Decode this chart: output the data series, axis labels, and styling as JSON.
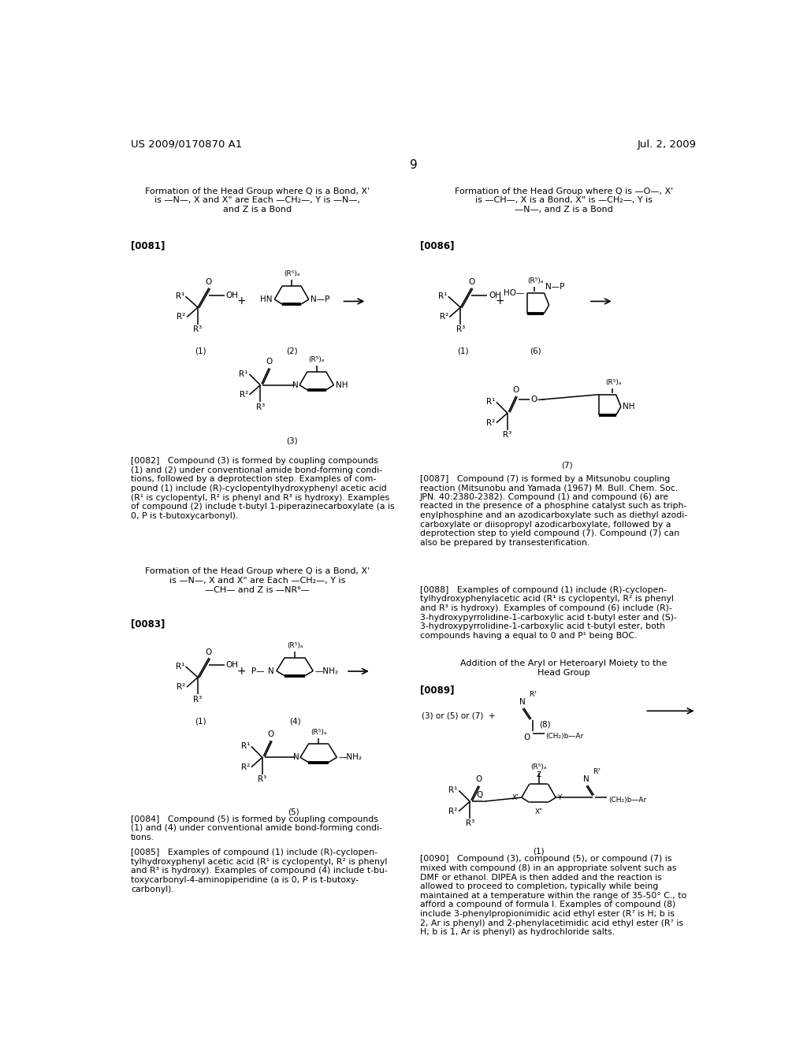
{
  "background_color": "#ffffff",
  "header_left": "US 2009/0170870 A1",
  "header_right": "Jul. 2, 2009",
  "page_number": "9"
}
